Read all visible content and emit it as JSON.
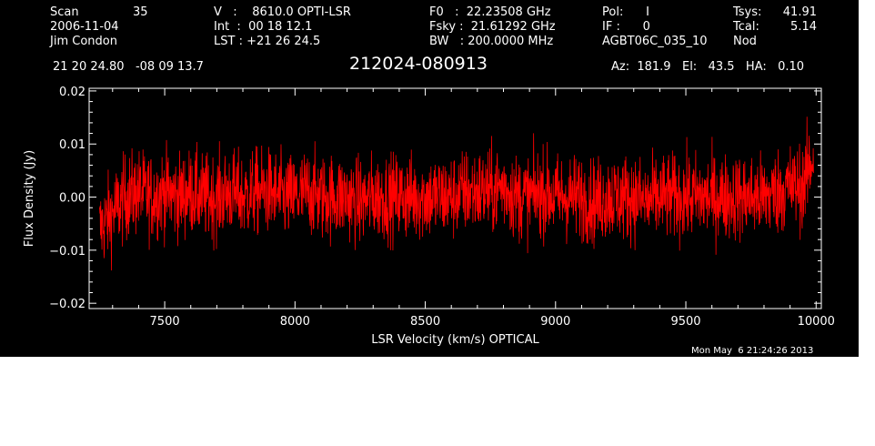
{
  "header": {
    "col1": {
      "scan_label": "Scan",
      "scan_value": "35",
      "date": "2006-11-04",
      "observer": "Jim Condon"
    },
    "col2": {
      "v_line": "V   :    8610.0 OPTI-LSR",
      "int_line": "Int  :  00 18 12.1",
      "lst_line": "LST : +21 26 24.5"
    },
    "col3": {
      "f0_line": "F0   :  22.23508 GHz",
      "fsky_line": "Fsky :  21.61292 GHz",
      "bw_line": "BW   : 200.0000 MHz"
    },
    "col4": {
      "pol_line": "Pol:      I",
      "if_line": "IF :      0",
      "project": "AGBT06C_035_10"
    },
    "col5": {
      "tsys_label": "Tsys:",
      "tsys_value": "41.91",
      "tcal_label": "Tcal:",
      "tcal_value": "5.14",
      "mode": "Nod"
    },
    "coords": "21 20 24.80   -08 09 13.7",
    "source": "212024-080913",
    "pointing": "Az:  181.9   El:   43.5   HA:   0.10",
    "timestamp": "Mon May  6 21:24:26 2013"
  },
  "colors": {
    "background": "#000000",
    "axes": "#ffffff",
    "trace": "#ff0000",
    "page": "#ffffff"
  },
  "chart_data": {
    "type": "line",
    "title": "212024-080913",
    "xlabel": "LSR Velocity (km/s) OPTICAL",
    "ylabel": "Flux Density (Jy)",
    "xlim": [
      7210,
      10020
    ],
    "ylim": [
      -0.021,
      0.0205
    ],
    "x_ticks": [
      7500,
      8000,
      8500,
      9000,
      9500,
      10000
    ],
    "x_tick_labels": [
      "7500",
      "8000",
      "8500",
      "9000",
      "9500",
      "10000"
    ],
    "y_ticks": [
      -0.02,
      -0.01,
      0.0,
      0.01,
      0.02
    ],
    "y_tick_labels": [
      "−0.02",
      "−0.01",
      "0.00",
      "0.01",
      "0.02"
    ],
    "grid": false,
    "legend": "none",
    "series": [
      {
        "color": "#ff0000",
        "x": [
          7250,
          7300,
          7350,
          7400,
          7450,
          7500,
          7550,
          7600,
          7650,
          7700,
          7750,
          7800,
          7850,
          7900,
          7950,
          8000,
          8050,
          8100,
          8150,
          8200,
          8250,
          8300,
          8350,
          8400,
          8450,
          8500,
          8550,
          8600,
          8650,
          8700,
          8750,
          8800,
          8850,
          8900,
          8950,
          9000,
          9050,
          9100,
          9150,
          9200,
          9250,
          9300,
          9350,
          9400,
          9450,
          9500,
          9550,
          9600,
          9650,
          9700,
          9750,
          9800,
          9850,
          9900,
          9950,
          9990
        ],
        "y": [
          -0.006,
          -0.003,
          0.0,
          0.001,
          0.0,
          0.001,
          0.0,
          0.001,
          0.0,
          0.0,
          0.001,
          0.0,
          0.001,
          0.001,
          0.0,
          0.0,
          0.001,
          0.0,
          0.0,
          0.0,
          -0.001,
          0.0,
          0.0,
          0.0,
          0.0,
          0.0,
          0.0,
          0.0,
          0.001,
          0.001,
          0.001,
          0.002,
          0.0,
          0.0,
          0.001,
          0.0,
          0.0,
          0.0,
          -0.001,
          0.0,
          0.0,
          0.0,
          -0.001,
          0.0,
          0.0,
          0.0,
          0.0,
          0.0,
          0.0,
          0.0,
          0.0,
          0.0,
          0.001,
          0.002,
          0.002,
          0.008
        ],
        "noise_rms": 0.004
      }
    ]
  }
}
